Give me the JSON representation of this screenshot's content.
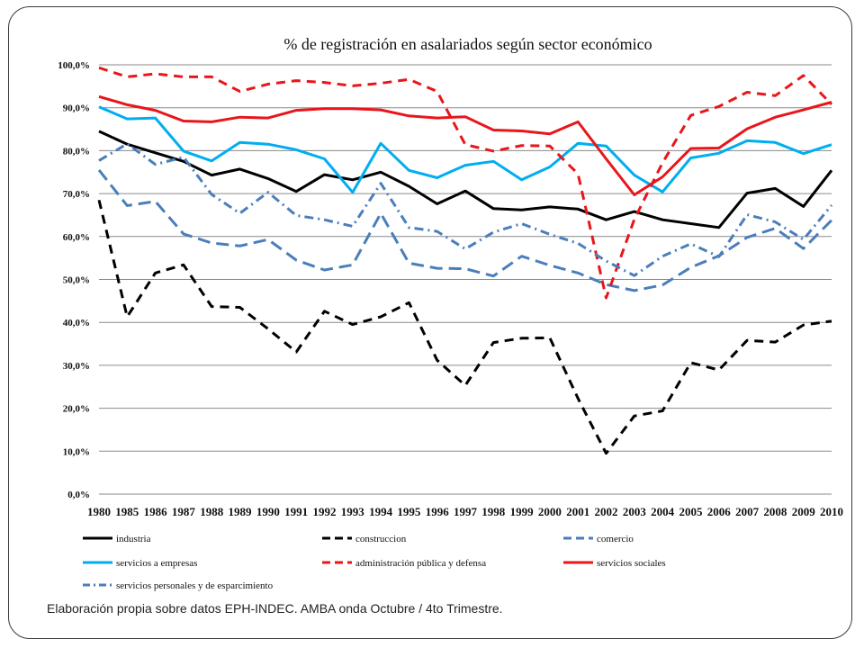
{
  "source_note": "Elaboración propia sobre datos EPH-INDEC. AMBA onda Octubre / 4to Trimestre.",
  "chart_data": {
    "type": "line",
    "title": "% de registración en asalariados según sector económico",
    "xlabel": "",
    "ylabel": "",
    "ylim": [
      0,
      100
    ],
    "yticks": [
      "0,0%",
      "10,0%",
      "20,0%",
      "30,0%",
      "40,0%",
      "50,0%",
      "60,0%",
      "70,0%",
      "80,0%",
      "90,0%",
      "100,0%"
    ],
    "grid": "horizontal",
    "legend_position": "bottom",
    "categories": [
      "1980",
      "1985",
      "1986",
      "1987",
      "1988",
      "1989",
      "1990",
      "1991",
      "1992",
      "1993",
      "1994",
      "1995",
      "1996",
      "1997",
      "1998",
      "1999",
      "2000",
      "2001",
      "2002",
      "2003",
      "2004",
      "2005",
      "2006",
      "2007",
      "2008",
      "2009",
      "2010"
    ],
    "series": [
      {
        "name": "industria",
        "color": "#000000",
        "dash": "solid",
        "values": [
          84.5,
          81.5,
          79.5,
          77.5,
          74.3,
          75.7,
          73.5,
          70.5,
          74.4,
          73.2,
          75.0,
          71.7,
          67.6,
          70.6,
          66.5,
          66.2,
          66.9,
          66.4,
          63.9,
          65.8,
          63.9,
          63.0,
          62.1,
          70.1,
          71.2,
          67.0,
          75.4
        ]
      },
      {
        "name": "construccion",
        "color": "#000000",
        "dash": "dash",
        "values": [
          68.5,
          41.3,
          51.5,
          53.4,
          43.7,
          43.5,
          38.5,
          33.1,
          42.6,
          39.5,
          41.3,
          44.6,
          31.2,
          25.3,
          35.3,
          36.3,
          36.4,
          22.3,
          9.5,
          18.2,
          19.4,
          30.6,
          28.9,
          35.8,
          35.4,
          39.4,
          40.3
        ]
      },
      {
        "name": "comercio",
        "color": "#4a7ebb",
        "dash": "longdash",
        "values": [
          75.5,
          67.2,
          68.2,
          60.6,
          58.5,
          57.8,
          59.3,
          54.5,
          52.2,
          53.4,
          65.4,
          53.8,
          52.6,
          52.5,
          50.8,
          55.4,
          53.3,
          51.5,
          48.8,
          47.4,
          48.7,
          52.8,
          55.5,
          59.8,
          61.9,
          57.2,
          63.8
        ]
      },
      {
        "name": "servicios a empresas",
        "color": "#00aeef",
        "dash": "solid",
        "values": [
          90.2,
          87.4,
          87.6,
          79.9,
          77.6,
          81.9,
          81.5,
          80.2,
          78.1,
          70.3,
          81.7,
          75.4,
          73.7,
          76.6,
          77.5,
          73.2,
          76.2,
          81.7,
          81.1,
          74.3,
          70.4,
          78.3,
          79.4,
          82.3,
          81.9,
          79.3,
          81.4
        ]
      },
      {
        "name": "administración pública y defensa",
        "color": "#e8161b",
        "dash": "dash",
        "values": [
          99.3,
          97.2,
          97.9,
          97.2,
          97.2,
          93.8,
          95.5,
          96.3,
          95.9,
          95.1,
          95.7,
          96.6,
          93.8,
          81.4,
          79.9,
          81.2,
          81.1,
          74.6,
          45.7,
          64.0,
          77.2,
          88.2,
          90.3,
          93.6,
          92.8,
          97.5,
          90.8
        ]
      },
      {
        "name": "servicios sociales",
        "color": "#e8161b",
        "dash": "solid",
        "values": [
          92.6,
          90.7,
          89.4,
          86.9,
          86.7,
          87.8,
          87.6,
          89.4,
          89.8,
          89.8,
          89.5,
          88.1,
          87.6,
          87.9,
          84.8,
          84.6,
          83.9,
          86.7,
          78.1,
          69.7,
          73.9,
          80.5,
          80.6,
          85.1,
          87.8,
          89.5,
          91.3
        ]
      },
      {
        "name": "servicios personales y de esparcimiento",
        "color": "#4a7ebb",
        "dash": "dashdot",
        "values": [
          77.7,
          81.6,
          76.8,
          78.5,
          69.8,
          65.4,
          70.3,
          64.9,
          63.9,
          62.4,
          72.4,
          62.1,
          61.2,
          57.1,
          61.0,
          63.0,
          60.5,
          58.4,
          54.3,
          50.9,
          55.4,
          58.3,
          55.3,
          65.1,
          63.4,
          59.3,
          67.3
        ]
      }
    ]
  }
}
